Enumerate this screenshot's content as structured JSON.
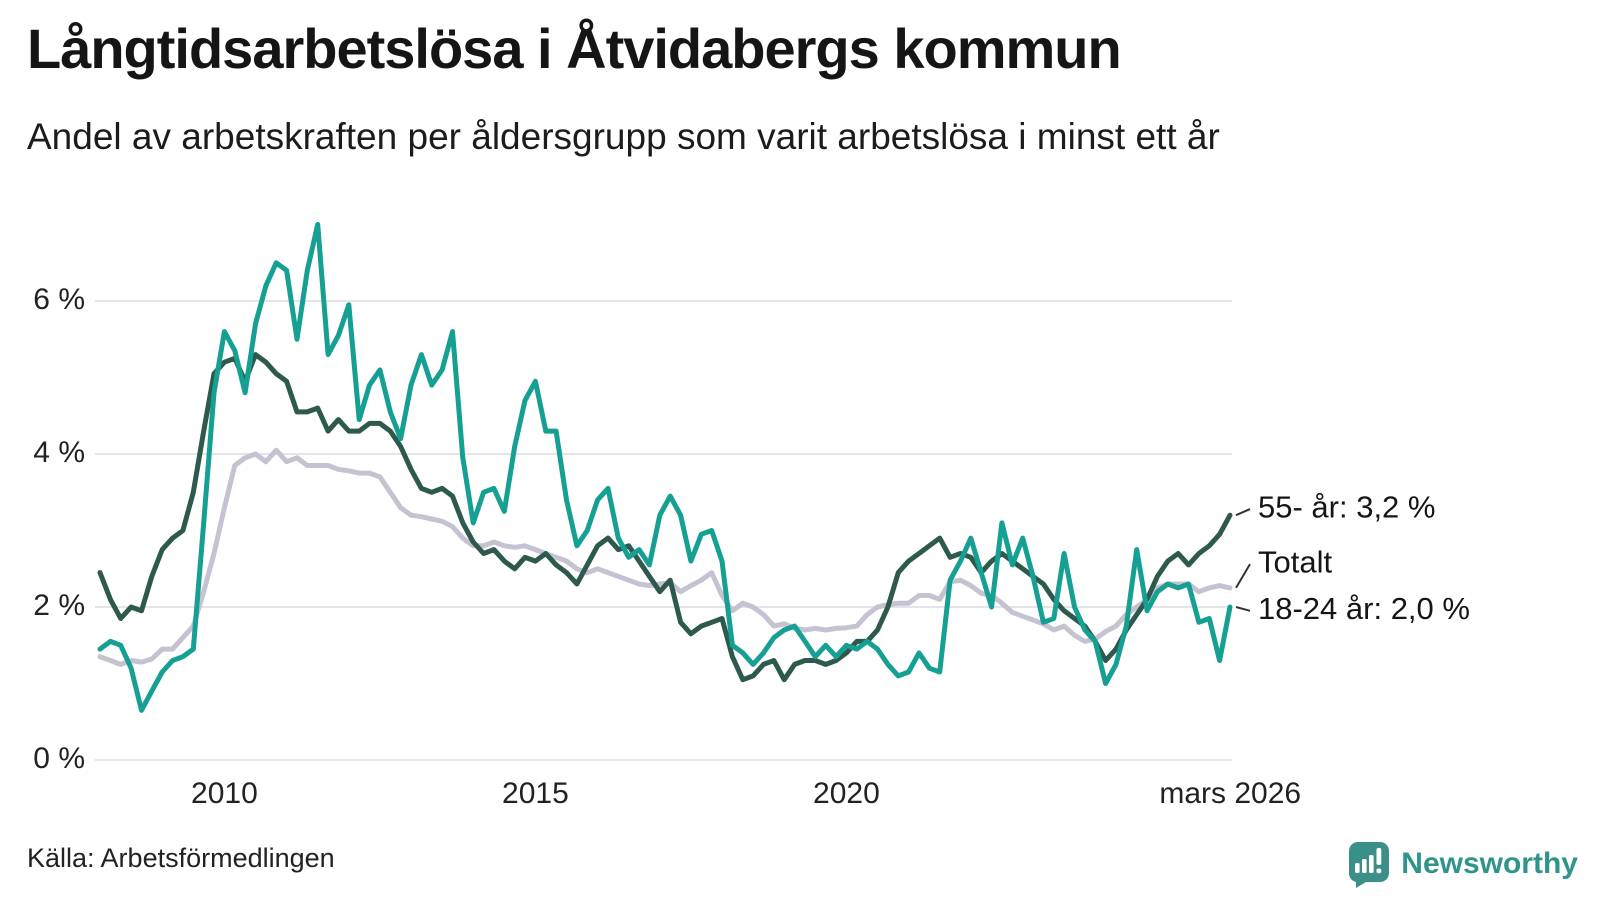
{
  "chart_data": {
    "type": "line",
    "title": "Långtidsarbetslösa i Åtvidabergs kommun",
    "subtitle": "Andel av arbetskraften per åldersgrupp som varit arbetslösa i minst ett år",
    "source": "Källa: Arbetsförmedlingen",
    "brand": "Newsworthy",
    "x_unit": "decimal_year",
    "x_start": 2008.0,
    "x_step_years": 0.166667,
    "x_end": 2026.17,
    "ylim": [
      0,
      7.3
    ],
    "grid": "horizontal",
    "yticks": [
      {
        "v": 0,
        "label": "0 %"
      },
      {
        "v": 2,
        "label": "2 %"
      },
      {
        "v": 4,
        "label": "4 %"
      },
      {
        "v": 6,
        "label": "6 %"
      }
    ],
    "xticks": [
      {
        "t": 2010.0,
        "label": "2010"
      },
      {
        "t": 2015.0,
        "label": "2015"
      },
      {
        "t": 2020.0,
        "label": "2020"
      },
      {
        "t": 2026.17,
        "label": "mars 2026"
      }
    ],
    "colors": {
      "55": "#2e5a4e",
      "totalt": "#c5c3d2",
      "1824": "#16a093",
      "grid": "#e4e4ea",
      "text": "#1a1a1a"
    },
    "series": [
      {
        "name": "55- år",
        "color": "#2e5a4e",
        "end_label": "55- år: 3,2 %",
        "end_value": 3.2,
        "label_v": 3.28,
        "values": [
          2.45,
          2.1,
          1.85,
          2.0,
          1.95,
          2.4,
          2.75,
          2.9,
          3.0,
          3.5,
          4.3,
          5.05,
          5.2,
          5.25,
          4.95,
          5.3,
          5.2,
          5.05,
          4.95,
          4.55,
          4.55,
          4.6,
          4.3,
          4.45,
          4.3,
          4.3,
          4.4,
          4.4,
          4.3,
          4.1,
          3.8,
          3.55,
          3.5,
          3.55,
          3.45,
          3.1,
          2.85,
          2.7,
          2.75,
          2.6,
          2.5,
          2.65,
          2.6,
          2.7,
          2.55,
          2.45,
          2.3,
          2.55,
          2.8,
          2.9,
          2.75,
          2.8,
          2.6,
          2.4,
          2.2,
          2.35,
          1.8,
          1.65,
          1.75,
          1.8,
          1.85,
          1.35,
          1.05,
          1.1,
          1.25,
          1.3,
          1.05,
          1.25,
          1.3,
          1.3,
          1.25,
          1.3,
          1.4,
          1.55,
          1.55,
          1.7,
          2.0,
          2.45,
          2.6,
          2.7,
          2.8,
          2.9,
          2.65,
          2.7,
          2.65,
          2.45,
          2.6,
          2.7,
          2.6,
          2.5,
          2.4,
          2.3,
          2.1,
          1.95,
          1.85,
          1.75,
          1.55,
          1.3,
          1.45,
          1.7,
          1.9,
          2.1,
          2.4,
          2.6,
          2.7,
          2.55,
          2.7,
          2.8,
          2.95,
          3.2
        ]
      },
      {
        "name": "Totalt",
        "color": "#c5c3d2",
        "end_label": "Totalt",
        "end_value": 2.25,
        "label_v": 2.56,
        "values": [
          1.35,
          1.3,
          1.25,
          1.3,
          1.28,
          1.32,
          1.45,
          1.45,
          1.6,
          1.75,
          2.2,
          2.7,
          3.3,
          3.85,
          3.95,
          4.0,
          3.9,
          4.05,
          3.9,
          3.95,
          3.85,
          3.85,
          3.85,
          3.8,
          3.78,
          3.75,
          3.75,
          3.7,
          3.5,
          3.3,
          3.2,
          3.18,
          3.15,
          3.12,
          3.05,
          2.9,
          2.8,
          2.8,
          2.85,
          2.8,
          2.78,
          2.8,
          2.75,
          2.7,
          2.65,
          2.6,
          2.5,
          2.45,
          2.5,
          2.45,
          2.4,
          2.35,
          2.3,
          2.28,
          2.3,
          2.32,
          2.2,
          2.28,
          2.35,
          2.45,
          2.15,
          1.95,
          2.05,
          2.0,
          1.9,
          1.75,
          1.78,
          1.72,
          1.7,
          1.72,
          1.7,
          1.72,
          1.73,
          1.75,
          1.9,
          2.0,
          2.03,
          2.05,
          2.05,
          2.15,
          2.15,
          2.1,
          2.33,
          2.35,
          2.28,
          2.18,
          2.15,
          2.05,
          1.93,
          1.88,
          1.83,
          1.78,
          1.7,
          1.75,
          1.63,
          1.55,
          1.58,
          1.68,
          1.75,
          1.9,
          2.0,
          2.1,
          2.25,
          2.3,
          2.3,
          2.3,
          2.2,
          2.25,
          2.28,
          2.25
        ]
      },
      {
        "name": "18-24 år",
        "color": "#16a093",
        "end_label": "18-24 år: 2,0 %",
        "end_value": 2.0,
        "label_v": 1.95,
        "values": [
          1.45,
          1.55,
          1.5,
          1.2,
          0.65,
          0.9,
          1.15,
          1.3,
          1.35,
          1.45,
          3.1,
          4.8,
          5.6,
          5.35,
          4.8,
          5.7,
          6.2,
          6.5,
          6.4,
          5.5,
          6.4,
          7.0,
          5.3,
          5.55,
          5.95,
          4.45,
          4.9,
          5.1,
          4.55,
          4.2,
          4.9,
          5.3,
          4.9,
          5.1,
          5.6,
          3.95,
          3.1,
          3.5,
          3.55,
          3.25,
          4.1,
          4.7,
          4.95,
          4.3,
          4.3,
          3.4,
          2.8,
          3.0,
          3.4,
          3.55,
          2.9,
          2.65,
          2.75,
          2.55,
          3.2,
          3.45,
          3.2,
          2.6,
          2.95,
          3.0,
          2.6,
          1.5,
          1.4,
          1.25,
          1.4,
          1.6,
          1.7,
          1.75,
          1.55,
          1.35,
          1.5,
          1.35,
          1.5,
          1.45,
          1.55,
          1.45,
          1.25,
          1.1,
          1.15,
          1.4,
          1.2,
          1.15,
          2.35,
          2.6,
          2.9,
          2.45,
          2.0,
          3.1,
          2.55,
          2.9,
          2.4,
          1.8,
          1.85,
          2.7,
          2.0,
          1.7,
          1.55,
          1.0,
          1.25,
          1.75,
          2.75,
          1.95,
          2.2,
          2.3,
          2.25,
          2.3,
          1.8,
          1.85,
          1.3,
          2.0
        ]
      }
    ]
  }
}
